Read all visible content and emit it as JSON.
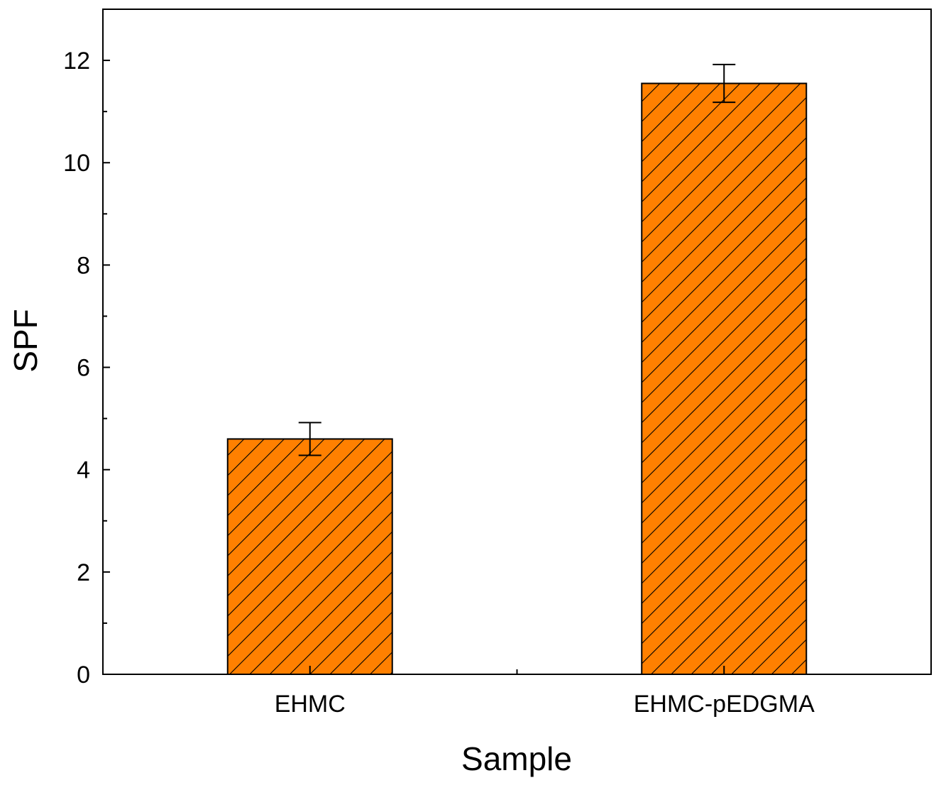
{
  "chart_data": {
    "type": "bar",
    "title": "",
    "xlabel": "Sample",
    "ylabel": "SPF",
    "categories": [
      "EHMC",
      "EHMC-pEDGMA"
    ],
    "values": [
      4.6,
      11.55
    ],
    "errors": [
      0.32,
      0.37
    ],
    "ylim": [
      0,
      13
    ],
    "yticks": [
      0,
      2,
      4,
      6,
      8,
      10,
      12
    ],
    "ytick_labels": [
      "0",
      "2",
      "4",
      "6",
      "8",
      "10",
      "12"
    ],
    "bar_color": "#ff8000",
    "hatch": "diagonal-backslash",
    "grid": false,
    "legend": "none"
  }
}
